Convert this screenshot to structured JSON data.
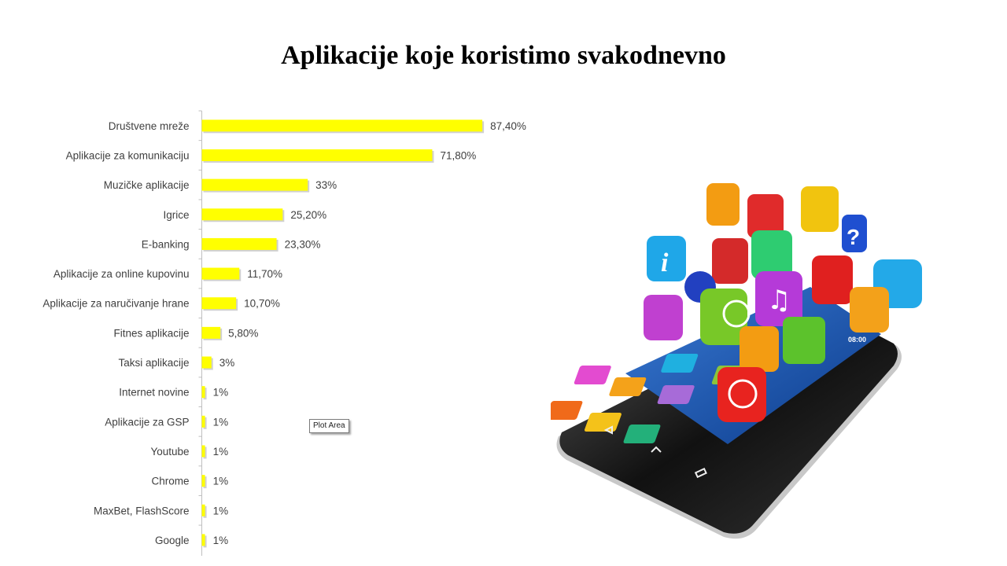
{
  "slide": {
    "title": "Aplikacije koje koristimo svakodnevno"
  },
  "tooltip": {
    "label": "Plot Area"
  },
  "colors": {
    "bar": "#ffff00",
    "bar_shadow": "#b0b0b0",
    "axis": "#bfbfbf",
    "text": "#404040"
  },
  "illustration": {
    "icon": "smartphone-with-app-icons-icon",
    "clock": "08:00"
  },
  "chart_data": {
    "type": "bar",
    "orientation": "horizontal",
    "title": "",
    "xlabel": "",
    "ylabel": "",
    "xlim": [
      0,
      100
    ],
    "grid": false,
    "legend": "none",
    "categories": [
      "Društvene mreže",
      "Aplikacije za komunikaciju",
      "Muzičke aplikacije",
      "Igrice",
      "E-banking",
      "Aplikacije za online kupovinu",
      "Aplikacije za naručivanje hrane",
      "Fitnes aplikacije",
      "Taksi aplikacije",
      "Internet novine",
      "Aplikacije za GSP",
      "Youtube",
      "Chrome",
      "MaxBet, FlashScore",
      "Google"
    ],
    "values": [
      87.4,
      71.8,
      33,
      25.2,
      23.3,
      11.7,
      10.7,
      5.8,
      3,
      1,
      1,
      1,
      1,
      1,
      1
    ],
    "data_labels": [
      "87,40%",
      "71,80%",
      "33%",
      "25,20%",
      "23,30%",
      "11,70%",
      "10,70%",
      "5,80%",
      "3%",
      "1%",
      "1%",
      "1%",
      "1%",
      "1%",
      "1%"
    ]
  }
}
